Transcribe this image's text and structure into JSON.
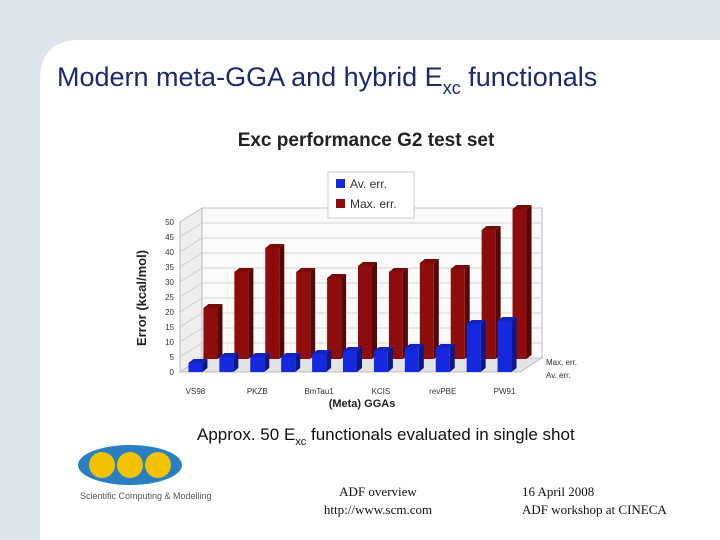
{
  "slide": {
    "title": [
      "Modern meta-GGA and hybrid E",
      "xc",
      " functionals"
    ],
    "caption": [
      "Approx. 50 E",
      "xc",
      " functionals evaluated in single shot"
    ],
    "logo_text": "Scientific Computing & Modelling",
    "footer_center": [
      "ADF overview",
      "http://www.scm.com"
    ],
    "footer_right": [
      "16 April 2008",
      "ADF workshop at CINECA"
    ]
  },
  "chart_data": {
    "type": "bar3d",
    "title": "Exc performance G2 test set",
    "y_label": "Error (kcal/mol)",
    "x_label": "(Meta) GGAs",
    "categories": [
      "VS98",
      null,
      "PKZB",
      null,
      "BmTau1",
      null,
      "KCIS",
      null,
      "revPBE",
      null,
      "PW91"
    ],
    "series": [
      {
        "name": "Av. err.",
        "color": "#1428e0",
        "values": [
          3,
          5,
          5,
          5,
          6,
          7,
          7,
          8,
          8,
          16,
          17
        ]
      },
      {
        "name": "Max. err.",
        "color": "#8e0c0c",
        "values": [
          17,
          29,
          37,
          29,
          27,
          31,
          29,
          32,
          30,
          43,
          50
        ]
      }
    ],
    "ylim": [
      0,
      50
    ],
    "yticks": [
      0,
      5,
      10,
      15,
      20,
      25,
      30,
      35,
      40,
      45,
      50
    ],
    "grid": true,
    "legend": "top"
  }
}
